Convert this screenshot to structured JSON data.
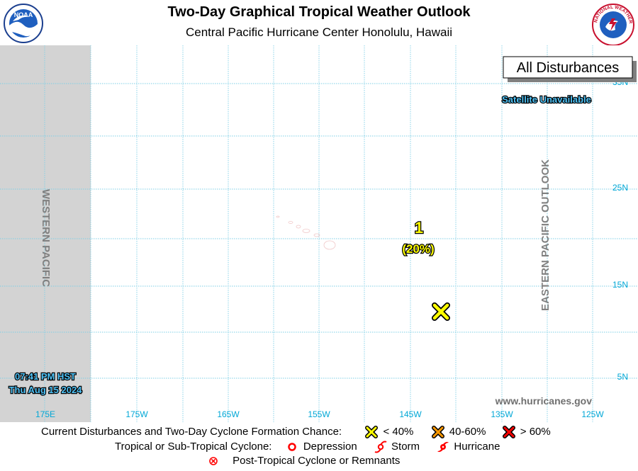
{
  "header": {
    "title": "Two-Day Graphical Tropical Weather Outlook",
    "subtitle": "Central Pacific Hurricane Center  Honolulu, Hawaii"
  },
  "logos": {
    "left": "noaa-logo",
    "left_text": "NOAA",
    "right": "nws-logo",
    "right_text": "NATIONAL WEATHER SERVICE"
  },
  "map": {
    "filter_label": "All Disturbances",
    "satellite_status": "Satellite Unavailable",
    "west_region_label": "WESTERN PACIFIC",
    "east_region_label": "EASTERN PACIFIC OUTLOOK",
    "timestamp_time": "07:41 PM HST",
    "timestamp_date": "Thu Aug 15 2024",
    "website": "www.hurricanes.gov",
    "lon_labels": [
      "175E",
      "175W",
      "165W",
      "155W",
      "145W",
      "135W",
      "125W"
    ],
    "lat_labels": [
      "35N",
      "25N",
      "15N",
      "5N"
    ],
    "colors": {
      "grid": "#7ecfe6",
      "label": "#00a7d6",
      "western_shade": "#d3d3d3",
      "low_chance": "#ffff00",
      "medium_chance": "#ff9900",
      "high_chance": "#ff0000",
      "cyclone_red": "#ff0000"
    },
    "disturbances": [
      {
        "id": "1",
        "chance": "(20%)",
        "category": "low"
      }
    ]
  },
  "legend": {
    "row1_label": "Current Disturbances and Two-Day Cyclone Formation Chance:",
    "low": "< 40%",
    "medium": "40-60%",
    "high": "> 60%",
    "row2_label": "Tropical or Sub-Tropical Cyclone:",
    "depression": "Depression",
    "storm": "Storm",
    "hurricane": "Hurricane",
    "row3_label": "Post-Tropical Cyclone or Remnants"
  }
}
